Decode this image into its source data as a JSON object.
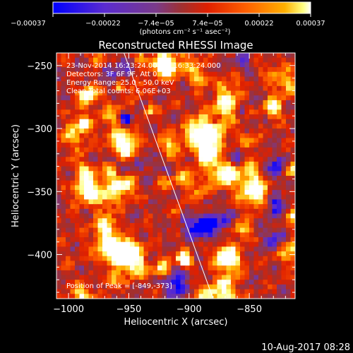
{
  "chart_data": {
    "type": "heatmap",
    "title": "Reconstructed RHESSI Image",
    "xlabel": "Heliocentric X (arcsec)",
    "ylabel": "Heliocentric Y (arcsec)",
    "xlim": [
      -1010,
      -812
    ],
    "ylim": [
      -435,
      -240
    ],
    "xticks": [
      -1000,
      -950,
      -900,
      -850
    ],
    "xtick_labels": [
      "−1000",
      "−950",
      "−900",
      "−850"
    ],
    "yticks": [
      -250,
      -300,
      -350,
      -400
    ],
    "ytick_labels": [
      "−250",
      "−300",
      "−350",
      "−400"
    ],
    "colorbar": {
      "range": [
        -0.00037,
        0.00037
      ],
      "tick_labels": [
        "−0.00037",
        "−0.00022",
        "−7.4e−05",
        "7.4e−05",
        "0.00022",
        "0.00037"
      ],
      "unit_label": "(photons cm⁻² s⁻¹ asec⁻²)",
      "colors": [
        "#0000ff",
        "#5a2bd0",
        "#7a3a8a",
        "#a03030",
        "#e02000",
        "#ff6000",
        "#ffb000",
        "#ffff80",
        "#ffffff"
      ]
    },
    "annotations": [
      "23-Nov-2014 16:23:24.000 to 16:33:24.000",
      "Detectors: 3F 6F 9F, Att 0",
      "Energy Range: 25.0 - 50.0 keV",
      "Clean     Total counts: 6.06E+03"
    ],
    "peak_label": "Position of Peak = [-849,-373]",
    "limb_line": {
      "x": [
        -954,
        -880
      ],
      "y": [
        -240,
        -435
      ]
    },
    "grid": false
  },
  "footer_date": "10-Aug-2017 08:28"
}
